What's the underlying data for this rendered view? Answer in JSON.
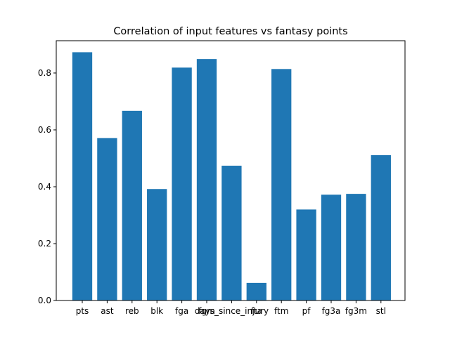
{
  "chart_data": {
    "type": "bar",
    "title": "Correlation of input features vs fantasy points",
    "xlabel": "",
    "ylabel": "",
    "categories": [
      "pts",
      "ast",
      "reb",
      "blk",
      "fga",
      "fgm",
      "days_since_injury",
      "fta",
      "ftm",
      "pf",
      "fg3a",
      "fg3m",
      "stl"
    ],
    "values": [
      0.873,
      0.571,
      0.667,
      0.392,
      0.819,
      0.849,
      0.474,
      0.062,
      0.814,
      0.32,
      0.372,
      0.375,
      0.511
    ],
    "ylim": [
      0,
      0.9135
    ],
    "yticks": [
      0.0,
      0.2,
      0.4,
      0.6,
      0.8
    ],
    "ytick_labels": [
      "0.0",
      "0.2",
      "0.4",
      "0.6",
      "0.8"
    ],
    "grid": false,
    "bar_color": "#1f77b4"
  }
}
